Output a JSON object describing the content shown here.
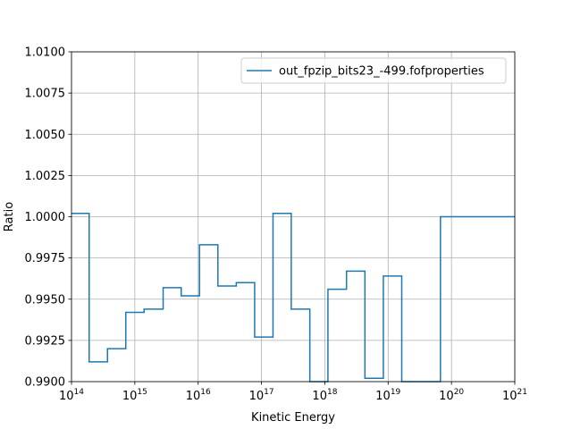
{
  "chart_data": {
    "type": "line",
    "drawstyle": "steps-post",
    "title": "",
    "xlabel": "Kinetic Energy",
    "ylabel": "Ratio",
    "xscale": "log",
    "xlim": [
      100000000000000.0,
      1e+21
    ],
    "ylim": [
      0.99,
      1.01
    ],
    "grid": true,
    "legend_position": "top-right",
    "series_color": "#1f77b4",
    "y_ticks": [
      "0.9900",
      "0.9925",
      "0.9950",
      "0.9975",
      "1.0000",
      "1.0025",
      "1.0050",
      "1.0075",
      "1.0100"
    ],
    "x_ticks": [
      {
        "base": "10",
        "exp": "14"
      },
      {
        "base": "10",
        "exp": "15"
      },
      {
        "base": "10",
        "exp": "16"
      },
      {
        "base": "10",
        "exp": "17"
      },
      {
        "base": "10",
        "exp": "18"
      },
      {
        "base": "10",
        "exp": "19"
      },
      {
        "base": "10",
        "exp": "20"
      },
      {
        "base": "10",
        "exp": "21"
      }
    ],
    "series": [
      {
        "name": "out_fpzip_bits23_-499.fofproperties",
        "x": [
          100000000000000.0,
          190000000000000.0,
          370000000000000.0,
          720000000000000.0,
          1400000000000000.0,
          2800000000000000.0,
          5400000000000000.0,
          1.05e+16,
          2.05e+16,
          4e+16,
          7.8e+16,
          1.52e+17,
          2.95e+17,
          5.8e+17,
          1.12e+18,
          2.2e+18,
          4.3e+18,
          8.4e+18,
          1.64e+19,
          6.7e+19,
          1e+21
        ],
        "values": [
          1.0002,
          0.9912,
          0.992,
          0.9942,
          0.9944,
          0.9957,
          0.9952,
          0.9983,
          0.9958,
          0.996,
          0.9927,
          1.0002,
          0.9944,
          null,
          0.9956,
          0.9967,
          0.9902,
          0.9964,
          null,
          1.0,
          1.0
        ]
      }
    ]
  }
}
